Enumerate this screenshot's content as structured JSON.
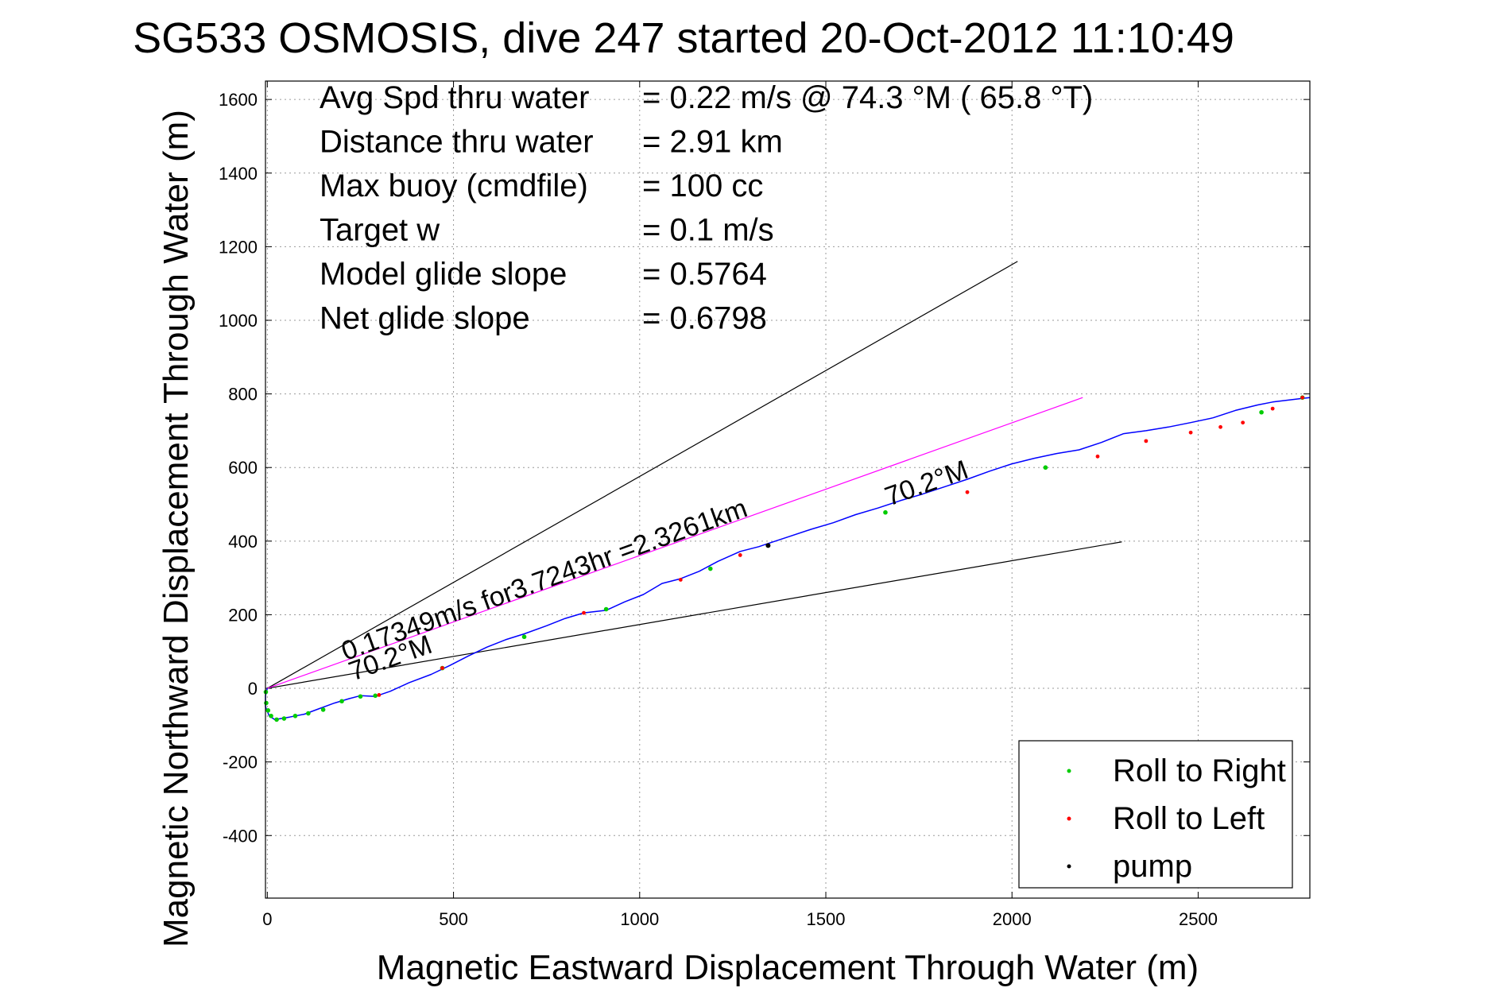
{
  "chart_data": {
    "type": "line",
    "title": "SG533 OSMOSIS, dive 247 started 20-Oct-2012 11:10:49",
    "xlabel": "Magnetic Eastward Displacement Through Water (m)",
    "ylabel": "Magnetic Northward Displacement Through Water (m)",
    "xlim": [
      -5,
      2800
    ],
    "ylim": [
      -570,
      1650
    ],
    "xticks": [
      0,
      500,
      1000,
      1500,
      2000,
      2500
    ],
    "yticks": [
      -400,
      -200,
      0,
      200,
      400,
      600,
      800,
      1000,
      1200,
      1400,
      1600
    ],
    "grid": true,
    "stats": [
      {
        "label": "Avg Spd thru water",
        "value": "=  0.22 m/s @  74.3 °M ( 65.8 °T)"
      },
      {
        "label": "Distance thru water",
        "value": "=  2.91 km"
      },
      {
        "label": "Max buoy (cmdfile)",
        "value": "= 100 cc"
      },
      {
        "label": "Target w",
        "value": "= 0.1 m/s"
      },
      {
        "label": "Model glide slope",
        "value": "= 0.5764"
      },
      {
        "label": "Net glide slope",
        "value": "= 0.6798"
      }
    ],
    "annotations": [
      {
        "text": "0.17349m/s for3.7243hr =2.3261km",
        "x": 210,
        "y": 75,
        "angle_deg": 19.8
      },
      {
        "text": "70.2°M",
        "x": 230,
        "y": 20,
        "angle_deg": 19.8
      },
      {
        "text": "70.2°M",
        "x": 1670,
        "y": 495,
        "angle_deg": 19.8
      }
    ],
    "reference_lines": [
      {
        "name": "upper heading bound",
        "color": "#000000",
        "x": [
          0,
          2015
        ],
        "y": [
          0,
          1160
        ]
      },
      {
        "name": "lower heading bound",
        "color": "#000000",
        "x": [
          0,
          2295
        ],
        "y": [
          0,
          398
        ]
      },
      {
        "name": "current vector",
        "color": "#ff00ff",
        "x": [
          0,
          2190
        ],
        "y": [
          0,
          790
        ]
      }
    ],
    "series": [
      {
        "name": "",
        "color": "#0000ff",
        "x": [
          0,
          -5,
          -5,
          5,
          20,
          60,
          100,
          140,
          180,
          220,
          250,
          290,
          330,
          380,
          440,
          490,
          540,
          590,
          640,
          690,
          750,
          800,
          850,
          910,
          960,
          1010,
          1060,
          1110,
          1160,
          1210,
          1270,
          1320,
          1350,
          1400,
          1460,
          1520,
          1580,
          1640,
          1700,
          1760,
          1820,
          1880,
          1940,
          2000,
          2060,
          2120,
          2180,
          2240,
          2300,
          2360,
          2420,
          2480,
          2540,
          2600,
          2660,
          2700,
          2740,
          2780,
          2800
        ],
        "y": [
          0,
          -20,
          -50,
          -75,
          -85,
          -78,
          -70,
          -55,
          -40,
          -28,
          -20,
          -22,
          -8,
          15,
          38,
          62,
          88,
          112,
          132,
          148,
          170,
          190,
          205,
          212,
          235,
          255,
          285,
          298,
          318,
          345,
          372,
          385,
          395,
          412,
          432,
          450,
          472,
          490,
          510,
          528,
          548,
          568,
          590,
          610,
          625,
          638,
          648,
          668,
          692,
          700,
          710,
          722,
          735,
          755,
          770,
          778,
          783,
          788,
          790
        ]
      }
    ],
    "legend": {
      "position": "bottom-right",
      "items": [
        {
          "label": "Roll to Right",
          "color": "#00cc00"
        },
        {
          "label": "Roll to Left",
          "color": "#ff0000"
        },
        {
          "label": "pump",
          "color": "#000000"
        }
      ]
    },
    "markers": {
      "roll_right": {
        "color": "#00cc00",
        "x": [
          -4,
          -3,
          2,
          10,
          25,
          45,
          75,
          110,
          150,
          200,
          250,
          290,
          470,
          690,
          910,
          1190,
          1660,
          2090,
          2670,
          2780
        ],
        "y": [
          -10,
          -40,
          -60,
          -75,
          -85,
          -82,
          -75,
          -68,
          -58,
          -35,
          -22,
          -20,
          55,
          140,
          215,
          325,
          478,
          600,
          750,
          790
        ]
      },
      "roll_left": {
        "color": "#ff0000",
        "x": [
          300,
          470,
          850,
          1110,
          1270,
          1880,
          2230,
          2360,
          2480,
          2560,
          2620,
          2700,
          2780
        ],
        "y": [
          -18,
          55,
          205,
          295,
          362,
          533,
          630,
          672,
          695,
          710,
          722,
          760,
          790
        ]
      },
      "pump": {
        "color": "#000000",
        "x": [
          1345
        ],
        "y": [
          388
        ]
      }
    }
  }
}
